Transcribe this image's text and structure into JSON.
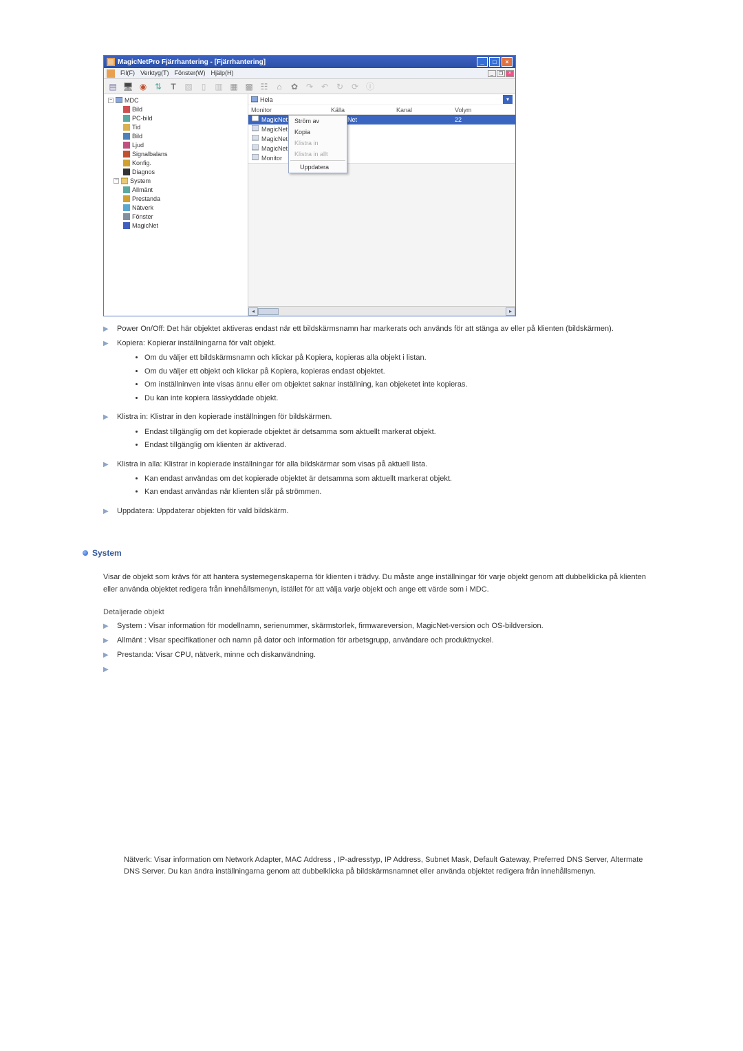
{
  "app": {
    "title": "MagicNetPro Fjärrhantering - [Fjärrhantering]",
    "menu": {
      "file": "Fil(F)",
      "tools": "Verktyg(T)",
      "window": "Fönster(W)",
      "help": "Hjälp(H)"
    }
  },
  "tree": {
    "root": "MDC",
    "items": [
      "Bild",
      "PC-bild",
      "Tid",
      "Bild",
      "Ljud",
      "Signalbalans",
      "Konfig.",
      "Diagnos"
    ],
    "system": "System",
    "system_items": [
      "Allmänt",
      "Prestanda",
      "Nätverk",
      "Fönster",
      "MagicNet"
    ]
  },
  "list": {
    "caption": "Hela",
    "col_monitor": "Monitor",
    "col_source": "Källa",
    "col_channel": "Kanal",
    "col_volume": "Volym",
    "rows": [
      {
        "name": "MagicNet",
        "src": "MagicNet",
        "vol": "22",
        "sel": true
      },
      {
        "name": "MagicNet",
        "src": "",
        "vol": ""
      },
      {
        "name": "MagicNet",
        "src": "",
        "vol": ""
      },
      {
        "name": "MagicNet",
        "src": "",
        "vol": ""
      },
      {
        "name": "Monitor",
        "src": "",
        "vol": ""
      }
    ]
  },
  "context_menu": {
    "power": "Ström av",
    "copy": "Kopia",
    "paste": "Klistra in",
    "paste_all": "Klistra in allt",
    "refresh": "Uppdatera"
  },
  "body": {
    "a1": "Power On/Off: Det här objektet aktiveras endast när ett bildskärmsnamn har markerats och används för att stänga av eller på klienten (bildskärmen).",
    "a2": "Kopiera: Kopierar inställningarna för valt objekt.",
    "a2_b1": "Om du väljer ett bildskärmsnamn och klickar på Kopiera, kopieras alla objekt i listan.",
    "a2_b2": "Om du väljer ett objekt och klickar på Kopiera, kopieras endast objektet.",
    "a2_b3": "Om inställninven inte visas ännu eller om objektet saknar inställning, kan objeketet inte kopieras.",
    "a2_b4": "Du kan inte kopiera lässkyddade objekt.",
    "a3": "Klistra in: Klistrar in den kopierade inställningen för bildskärmen.",
    "a3_b1": "Endast tillgänglig om det kopierade objektet är detsamma som aktuellt markerat objekt.",
    "a3_b2": "Endast tillgänglig om klienten är aktiverad.",
    "a4": "Klistra in alla: Klistrar in kopierade inställningar för alla bildskärmar som visas på aktuell lista.",
    "a4_b1": "Kan endast användas om det kopierade objektet är detsamma som aktuellt markerat objekt.",
    "a4_b2": "Kan endast användas när klienten slår på strömmen.",
    "a5": "Uppdatera: Uppdaterar objekten för vald bildskärm.",
    "system_heading": "System",
    "sys_p1": "Visar de objekt som krävs för att hantera systemegenskaperna för klienten i trädvy. Du måste ange inställningar för varje objekt genom att dubbelklicka på klienten eller använda objektet redigera från innehållsmenyn, istället för att välja varje objekt och ange ett värde som i MDC.",
    "detail_head": "Detaljerade objekt",
    "d1": "System : Visar information för modellnamn, serienummer, skärmstorlek, firmwareversion, MagicNet-version och OS-bildversion.",
    "d2": "Allmänt : Visar specifikationer och namn på dator och information för arbetsgrupp, användare och produktnyckel.",
    "d3": "Prestanda: Visar CPU, nätverk, minne och diskanvändning.",
    "network": "Nätverk: Visar information om Network Adapter, MAC Address , IP-adresstyp, IP Address, Subnet Mask, Default Gateway, Preferred DNS Server, Altermate DNS Server. Du kan ändra inställningarna genom att dubbelklicka på bildskärmsnamnet eller använda objektet redigera från innehållsmenyn."
  },
  "colors": {
    "tree_icons": [
      "#d05050",
      "#5aa8a0",
      "#dab050",
      "#5080b8",
      "#c05080",
      "#c05030",
      "#d0a030",
      "#333333"
    ],
    "sys_icons": [
      "#5aa8a0",
      "#d0a030",
      "#5aa8d0",
      "#8090a0",
      "#4060c0"
    ]
  }
}
